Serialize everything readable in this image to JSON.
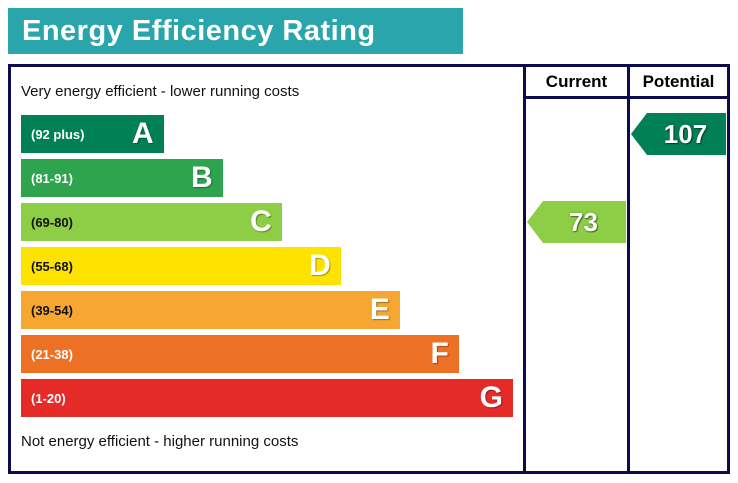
{
  "title": "Energy Efficiency Rating",
  "colors": {
    "title_bg": "#29a5ab",
    "border": "#0b0b4d",
    "title_text": "#ffffff"
  },
  "columns": {
    "current": "Current",
    "potential": "Potential"
  },
  "notes": {
    "top": "Very energy efficient - lower running costs",
    "bottom": "Not energy efficient - higher running costs"
  },
  "bands": [
    {
      "letter": "A",
      "range": "(92 plus)",
      "color": "#008054",
      "text_color": "#ffffff",
      "width_pct": 29
    },
    {
      "letter": "B",
      "range": "(81-91)",
      "color": "#2ea44e",
      "text_color": "#ffffff",
      "width_pct": 41
    },
    {
      "letter": "C",
      "range": "(69-80)",
      "color": "#8dce46",
      "text_color": "#111111",
      "width_pct": 53
    },
    {
      "letter": "D",
      "range": "(55-68)",
      "color": "#ffe300",
      "text_color": "#111111",
      "width_pct": 65
    },
    {
      "letter": "E",
      "range": "(39-54)",
      "color": "#f6a631",
      "text_color": "#111111",
      "width_pct": 77
    },
    {
      "letter": "F",
      "range": "(21-38)",
      "color": "#ed7124",
      "text_color": "#ffffff",
      "width_pct": 89
    },
    {
      "letter": "G",
      "range": "(1-20)",
      "color": "#e42b28",
      "text_color": "#ffffff",
      "width_pct": 100
    }
  ],
  "ratings": {
    "current": {
      "value": "73",
      "band": "C",
      "color": "#8dce46"
    },
    "potential": {
      "value": "107",
      "band": "A",
      "color": "#008054"
    }
  },
  "chart_data": {
    "type": "bar",
    "title": "Energy Efficiency Rating",
    "categories": [
      "A",
      "B",
      "C",
      "D",
      "E",
      "F",
      "G"
    ],
    "ranges": [
      "92 plus",
      "81-91",
      "69-80",
      "55-68",
      "39-54",
      "21-38",
      "1-20"
    ],
    "bar_widths_pct": [
      29,
      41,
      53,
      65,
      77,
      89,
      100
    ],
    "colors": [
      "#008054",
      "#2ea44e",
      "#8dce46",
      "#ffe300",
      "#f6a631",
      "#ed7124",
      "#e42b28"
    ],
    "series": [
      {
        "name": "Current",
        "value": 73,
        "band": "C"
      },
      {
        "name": "Potential",
        "value": 107,
        "band": "A"
      }
    ],
    "top_label": "Very energy efficient - lower running costs",
    "bottom_label": "Not energy efficient - higher running costs",
    "legend_position": "none",
    "grid": false
  }
}
